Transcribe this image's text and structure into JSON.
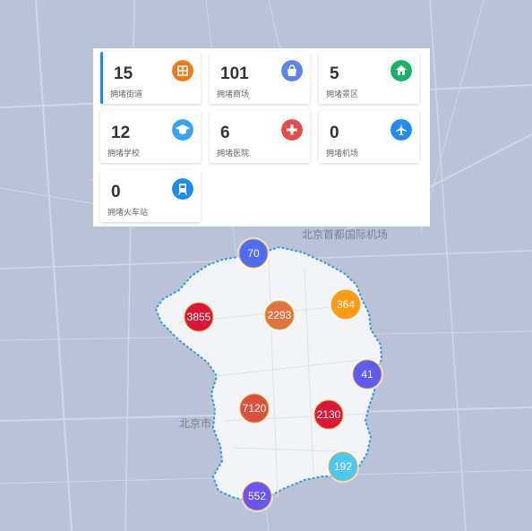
{
  "stats": [
    {
      "value": "15",
      "label": "拥堵街道",
      "icon": "grid-building-icon",
      "color": "#f07a16"
    },
    {
      "value": "101",
      "label": "拥堵商场",
      "icon": "shopping-bag-icon",
      "color": "#5b84f0"
    },
    {
      "value": "5",
      "label": "拥堵景区",
      "icon": "temple-icon",
      "color": "#19b169"
    },
    {
      "value": "12",
      "label": "拥堵学校",
      "icon": "graduation-cap-icon",
      "color": "#3aa1ee"
    },
    {
      "value": "6",
      "label": "拥堵医院",
      "icon": "medical-cross-icon",
      "color": "#e84a4a"
    },
    {
      "value": "0",
      "label": "拥堵机场",
      "icon": "airplane-icon",
      "color": "#1f8bf0"
    },
    {
      "value": "0",
      "label": "拥堵火车站",
      "icon": "train-icon",
      "color": "#1f8bf0"
    }
  ],
  "map": {
    "labels": {
      "city": "北京市",
      "airport": "北京首都国际机场"
    },
    "clusters": [
      {
        "value": "70",
        "color": "#4f6cf2"
      },
      {
        "value": "3855",
        "color": "#dc1637"
      },
      {
        "value": "2293",
        "color": "#e07440"
      },
      {
        "value": "364",
        "color": "#ff9a12"
      },
      {
        "value": "41",
        "color": "#5f5bf0"
      },
      {
        "value": "7120",
        "color": "#dc5040"
      },
      {
        "value": "2130",
        "color": "#dc1637"
      },
      {
        "value": "192",
        "color": "#4cc9ef"
      },
      {
        "value": "552",
        "color": "#6a54f2"
      }
    ]
  }
}
